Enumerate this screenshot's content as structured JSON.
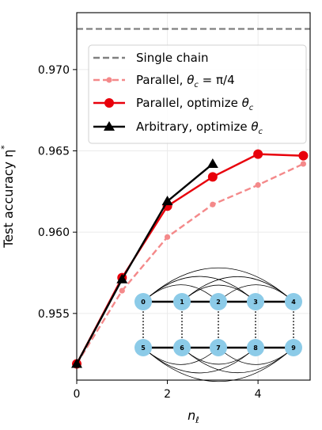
{
  "chart_data": {
    "type": "line",
    "xlabel_base": "n",
    "xlabel_sub": "ℓ",
    "ylabel_base": "Test accuracy η",
    "ylabel_sup": "*",
    "xlim": [
      0,
      5.15
    ],
    "ylim": [
      0.9509,
      0.9735
    ],
    "xticks": [
      0,
      2,
      4
    ],
    "xtick_labels": [
      "0",
      "2",
      "4"
    ],
    "yticks": [
      0.955,
      0.96,
      0.965,
      0.97
    ],
    "ytick_labels": [
      "0.955",
      "0.960",
      "0.965",
      "0.970"
    ],
    "grid": true,
    "legend_position": "upper-left",
    "series": [
      {
        "name": "Single chain",
        "style": "dashed-hline",
        "color": "#808080",
        "y": 0.9725
      },
      {
        "name": "Parallel, θc = π/4",
        "name_parts": [
          "Parallel, ",
          "θ",
          "c",
          " = π/4"
        ],
        "style": "dashed",
        "marker": "small-circle",
        "color": "#f4898a",
        "x": [
          0,
          1,
          2,
          3,
          4,
          5
        ],
        "y": [
          0.9519,
          0.9564,
          0.9597,
          0.9617,
          0.9629,
          0.9642
        ]
      },
      {
        "name": "Parallel, optimize θc",
        "name_parts": [
          "Parallel, optimize ",
          "θ",
          "c",
          ""
        ],
        "style": "solid",
        "marker": "circle",
        "color": "#e8000b",
        "x": [
          0,
          1,
          2,
          3,
          4,
          5
        ],
        "y": [
          0.9519,
          0.9572,
          0.9616,
          0.9634,
          0.9648,
          0.9647
        ]
      },
      {
        "name": "Arbitrary, optimize θc",
        "name_parts": [
          "Arbitrary, optimize ",
          "θ",
          "c",
          ""
        ],
        "style": "solid",
        "marker": "triangle",
        "color": "#000000",
        "x": [
          0,
          1,
          2,
          3
        ],
        "y": [
          0.9519,
          0.9571,
          0.9619,
          0.9642
        ]
      }
    ],
    "inset": {
      "top_nodes": [
        "0",
        "1",
        "2",
        "3",
        "4"
      ],
      "bottom_nodes": [
        "5",
        "6",
        "7",
        "8",
        "9"
      ],
      "node_color": "#8ccbe8"
    }
  }
}
